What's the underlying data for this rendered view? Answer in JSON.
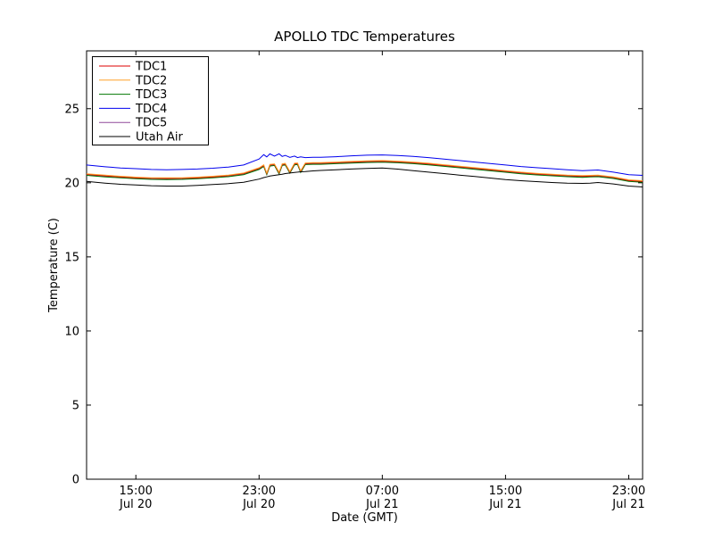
{
  "chart_data": {
    "type": "line",
    "title": "APOLLO TDC Temperatures",
    "xlabel": "Date (GMT)",
    "ylabel": "Temperature (C)",
    "x_unit": "hours since Jul 20 00:00 (GMT)",
    "xlim": [
      11.8,
      47.9
    ],
    "ylim": [
      0,
      28.9
    ],
    "yticks": [
      0,
      5,
      10,
      15,
      20,
      25
    ],
    "xticks": [
      {
        "value": 15,
        "label_time": "15:00",
        "label_date": "Jul 20"
      },
      {
        "value": 23,
        "label_time": "23:00",
        "label_date": "Jul 20"
      },
      {
        "value": 31,
        "label_time": "07:00",
        "label_date": "Jul 21"
      },
      {
        "value": 39,
        "label_time": "15:00",
        "label_date": "Jul 21"
      },
      {
        "value": 47,
        "label_time": "23:00",
        "label_date": "Jul 21"
      }
    ],
    "legend_position": "upper left",
    "grid": false,
    "x": [
      11.8,
      13,
      14,
      15,
      16,
      17,
      18,
      19,
      20,
      21,
      22,
      23,
      23.3,
      23.5,
      23.7,
      24,
      24.3,
      24.5,
      24.7,
      25,
      25.3,
      25.5,
      25.7,
      26,
      26.5,
      27,
      28,
      29,
      30,
      31,
      32,
      33,
      34,
      35,
      36,
      37,
      38,
      39,
      40,
      41,
      42,
      43,
      44,
      44.5,
      45,
      46,
      47,
      47.9
    ],
    "series": [
      {
        "name": "TDC1",
        "color": "#dd0000",
        "values": [
          20.57,
          20.47,
          20.4,
          20.34,
          20.3,
          20.29,
          20.3,
          20.34,
          20.4,
          20.48,
          20.62,
          20.97,
          21.17,
          20.62,
          21.2,
          21.24,
          20.67,
          21.24,
          21.27,
          20.72,
          21.28,
          21.3,
          20.77,
          21.3,
          21.32,
          21.32,
          21.36,
          21.4,
          21.44,
          21.46,
          21.42,
          21.36,
          21.28,
          21.18,
          21.08,
          20.98,
          20.88,
          20.78,
          20.68,
          20.6,
          20.54,
          20.48,
          20.44,
          20.46,
          20.48,
          20.36,
          20.16,
          20.1
        ]
      },
      {
        "name": "TDC2",
        "color": "#ffa028",
        "values": [
          20.61,
          20.51,
          20.44,
          20.38,
          20.34,
          20.33,
          20.34,
          20.38,
          20.44,
          20.52,
          20.66,
          21.01,
          21.21,
          20.66,
          21.24,
          21.28,
          20.71,
          21.28,
          21.31,
          20.76,
          21.32,
          21.34,
          20.81,
          21.34,
          21.36,
          21.36,
          21.4,
          21.44,
          21.48,
          21.5,
          21.46,
          21.4,
          21.32,
          21.22,
          21.12,
          21.02,
          20.92,
          20.82,
          20.72,
          20.64,
          20.58,
          20.52,
          20.48,
          20.5,
          20.52,
          20.4,
          20.2,
          20.14
        ]
      },
      {
        "name": "TDC3",
        "color": "#007700",
        "values": [
          20.5,
          20.4,
          20.33,
          20.27,
          20.23,
          20.22,
          20.23,
          20.27,
          20.33,
          20.41,
          20.55,
          20.9,
          21.1,
          20.55,
          21.13,
          21.17,
          20.6,
          21.17,
          21.2,
          20.65,
          21.21,
          21.23,
          20.7,
          21.23,
          21.25,
          21.25,
          21.29,
          21.33,
          21.37,
          21.39,
          21.35,
          21.29,
          21.21,
          21.11,
          21.01,
          20.91,
          20.81,
          20.71,
          20.61,
          20.53,
          20.47,
          20.41,
          20.37,
          20.39,
          20.41,
          20.29,
          20.09,
          20.03
        ]
      },
      {
        "name": "TDC4",
        "color": "#0000ee",
        "values": [
          21.2,
          21.08,
          21.0,
          20.95,
          20.9,
          20.88,
          20.9,
          20.93,
          20.98,
          21.06,
          21.2,
          21.6,
          21.9,
          21.75,
          21.95,
          21.8,
          21.95,
          21.78,
          21.85,
          21.72,
          21.8,
          21.7,
          21.75,
          21.7,
          21.72,
          21.72,
          21.76,
          21.82,
          21.86,
          21.88,
          21.84,
          21.78,
          21.7,
          21.6,
          21.5,
          21.4,
          21.3,
          21.2,
          21.1,
          21.02,
          20.95,
          20.88,
          20.82,
          20.84,
          20.86,
          20.72,
          20.55,
          20.5
        ]
      },
      {
        "name": "TDC5",
        "color": "#91499b",
        "values": [
          20.53,
          20.43,
          20.36,
          20.3,
          20.26,
          20.25,
          20.26,
          20.3,
          20.36,
          20.44,
          20.58,
          20.93,
          21.13,
          20.58,
          21.16,
          21.2,
          20.63,
          21.2,
          21.23,
          20.68,
          21.24,
          21.26,
          20.73,
          21.26,
          21.28,
          21.28,
          21.32,
          21.36,
          21.4,
          21.42,
          21.38,
          21.32,
          21.24,
          21.14,
          21.04,
          20.94,
          20.84,
          20.74,
          20.64,
          20.56,
          20.5,
          20.44,
          20.4,
          20.42,
          20.44,
          20.32,
          20.12,
          20.06
        ]
      },
      {
        "name": "Utah Air",
        "color": "#000000",
        "values": [
          20.1,
          19.98,
          19.9,
          19.85,
          19.8,
          19.78,
          19.78,
          19.82,
          19.88,
          19.94,
          20.04,
          20.25,
          20.35,
          20.4,
          20.45,
          20.5,
          20.55,
          20.58,
          20.62,
          20.66,
          20.7,
          20.72,
          20.74,
          20.76,
          20.8,
          20.83,
          20.88,
          20.93,
          20.97,
          21.0,
          20.92,
          20.82,
          20.72,
          20.62,
          20.52,
          20.42,
          20.32,
          20.22,
          20.14,
          20.08,
          20.02,
          19.98,
          19.96,
          19.98,
          20.02,
          19.92,
          19.78,
          19.72
        ]
      }
    ]
  }
}
